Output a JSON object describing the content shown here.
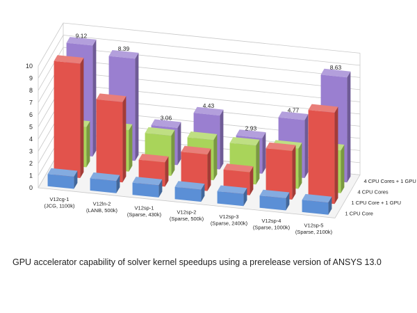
{
  "caption": "GPU accelerator capability of solver kernel speedups using a prerelease version of ANSYS 13.0",
  "chart_data": {
    "type": "bar",
    "style": "3d-grouped",
    "ylim": [
      0,
      10
    ],
    "yticks": [
      0,
      1,
      2,
      3,
      4,
      5,
      6,
      7,
      8,
      9,
      10
    ],
    "grid": true,
    "categories": [
      [
        "V12cg-1",
        "(JCG, 1100k)"
      ],
      [
        "V12ln-2",
        "(LANB, 500k)"
      ],
      [
        "V12sp-1",
        "(Sparse, 430k)"
      ],
      [
        "V12sp-2",
        "(Sparse, 500k)"
      ],
      [
        "V12sp-3",
        "(Sparse, 2400k)"
      ],
      [
        "V12sp-4",
        "(Sparse, 1000k)"
      ],
      [
        "V12sp-5",
        "(Sparse, 2100k)"
      ]
    ],
    "series": [
      {
        "name": "1 CPU Core",
        "values": [
          1,
          1,
          1,
          1,
          1,
          1,
          1
        ],
        "color": "#5b8fd6",
        "labels": []
      },
      {
        "name": "1 CPU Core + 1 GPU",
        "values": [
          9.4,
          6.6,
          2.0,
          3.0,
          1.9,
          4.0,
          7.5
        ],
        "color": "#e2534c",
        "labels": []
      },
      {
        "name": "4 CPU Cores",
        "values": [
          3.3,
          3.4,
          3.3,
          3.3,
          3.2,
          3.3,
          3.5
        ],
        "color": "#a9d45a",
        "labels": []
      },
      {
        "name": "4 CPU Cores + 1 GPU",
        "values": [
          9.12,
          8.39,
          3.06,
          4.43,
          2.93,
          4.77,
          8.63
        ],
        "color": "#9a7fd0",
        "labels": [
          "9.12",
          "8.39",
          "3.06",
          "4.43",
          "2.93",
          "4.77",
          "8.63"
        ]
      }
    ]
  }
}
